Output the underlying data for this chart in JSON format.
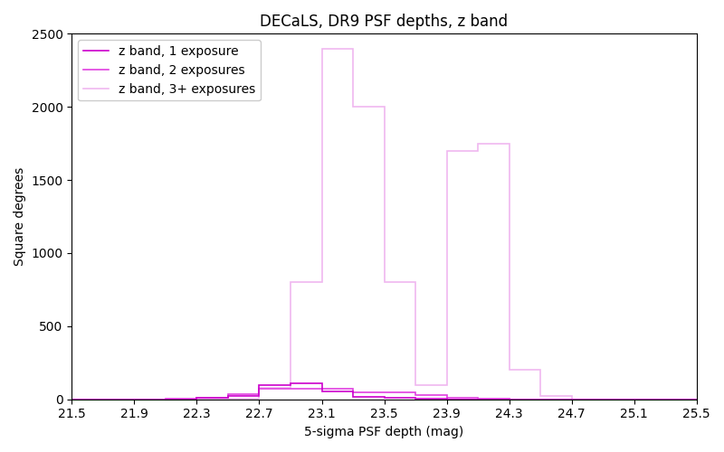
{
  "title": "DECaLS, DR9 PSF depths, z band",
  "xlabel": "5-sigma PSF depth (mag)",
  "ylabel": "Square degrees",
  "xlim": [
    21.5,
    25.5
  ],
  "ylim": [
    0,
    2500
  ],
  "xticks": [
    21.5,
    21.9,
    22.3,
    22.7,
    23.1,
    23.5,
    23.9,
    24.3,
    24.7,
    25.1,
    25.5
  ],
  "yticks": [
    0,
    500,
    1000,
    1500,
    2000,
    2500
  ],
  "bin_edges": [
    21.5,
    21.7,
    21.9,
    22.1,
    22.3,
    22.5,
    22.7,
    22.9,
    23.1,
    23.3,
    23.5,
    23.7,
    23.9,
    24.1,
    24.3,
    24.5,
    24.7,
    24.9,
    25.1,
    25.3,
    25.5
  ],
  "hist1": [
    0,
    0,
    0,
    1,
    8,
    22,
    95,
    110,
    55,
    18,
    8,
    3,
    1,
    0,
    0,
    0,
    0,
    0,
    0,
    0
  ],
  "hist2": [
    0,
    0,
    0,
    2,
    12,
    38,
    70,
    75,
    75,
    50,
    45,
    28,
    12,
    3,
    0,
    0,
    0,
    0,
    0,
    0
  ],
  "hist3": [
    0,
    0,
    0,
    0,
    2,
    5,
    80,
    800,
    2400,
    2000,
    800,
    100,
    1700,
    1750,
    200,
    20,
    0,
    0,
    0,
    0
  ],
  "color1": "#cc00cc",
  "color2": "#e040e0",
  "color3": "#f0b8f0",
  "lw1": 1.2,
  "lw2": 1.2,
  "lw3": 1.2,
  "label1": "z band, 1 exposure",
  "label2": "z band, 2 exposures",
  "label3": "z band, 3+ exposures",
  "figsize": [
    8.0,
    5.0
  ],
  "dpi": 100
}
